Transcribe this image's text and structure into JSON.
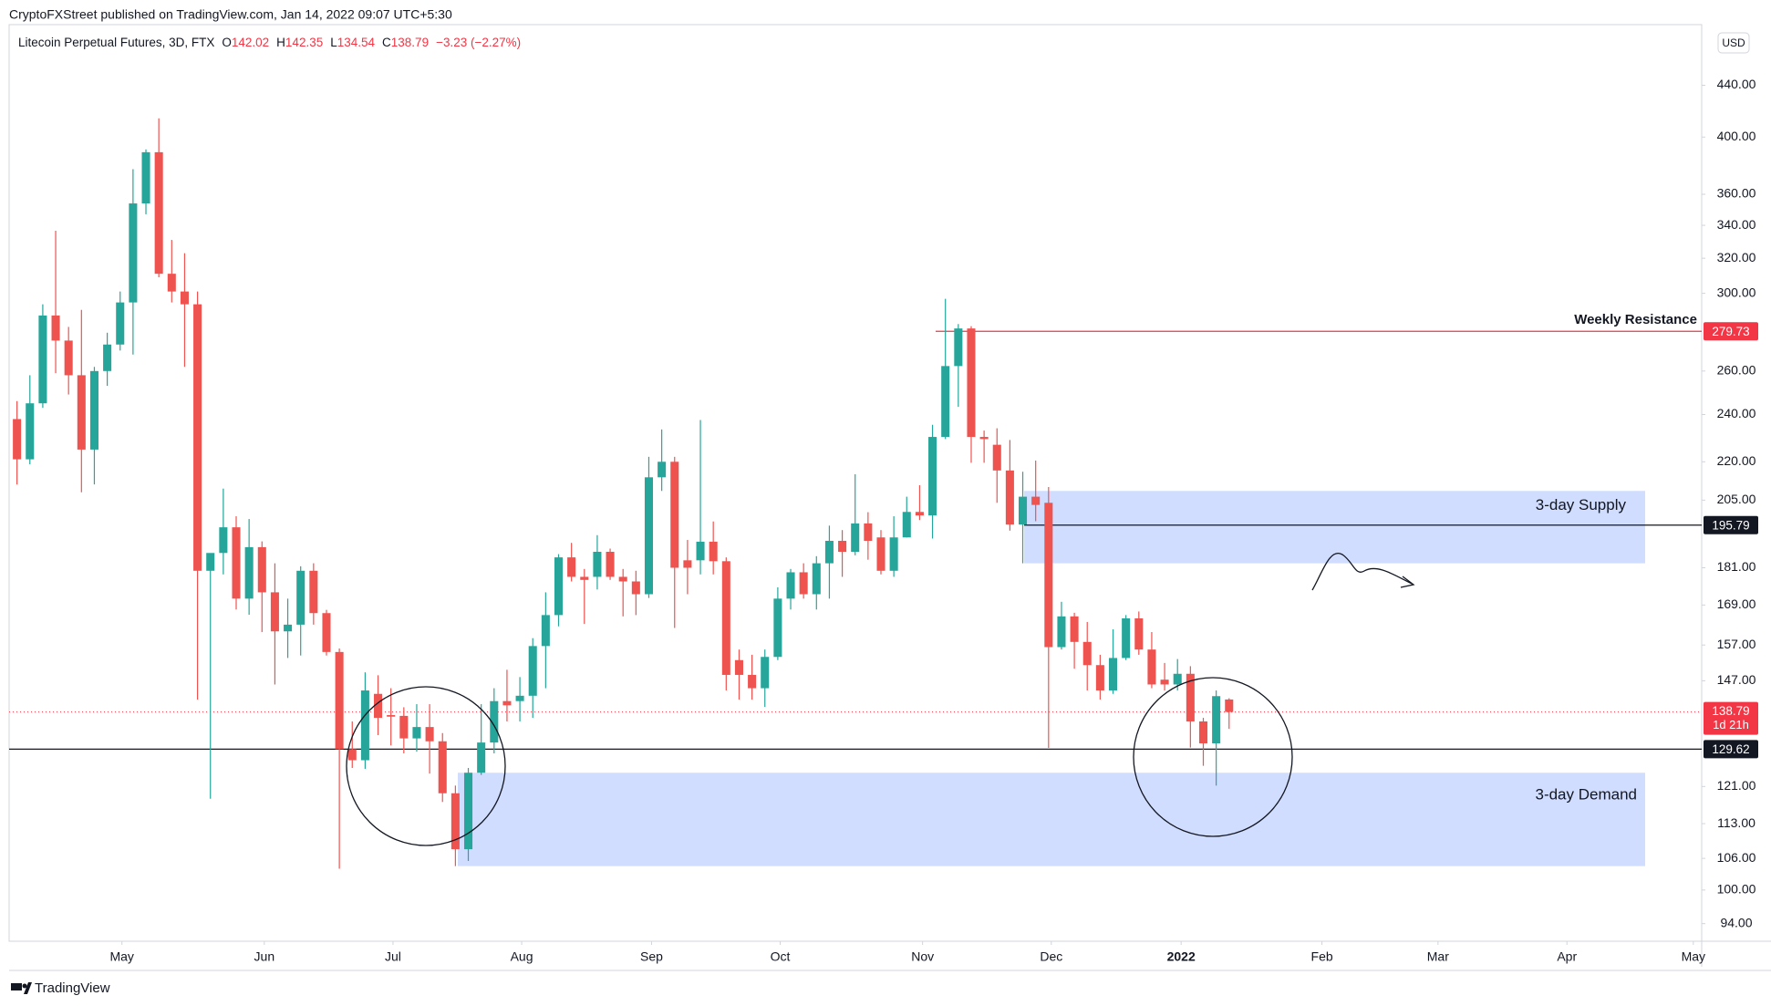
{
  "header": "CryptoFXStreet published on TradingView.com, Jan 14, 2022 09:07 UTC+5:30",
  "footer": "TradingView",
  "chart_data": {
    "type": "candlestick",
    "legend": {
      "symbol": "Litecoin Perpetual Futures, 3D, FTX",
      "ohlc": [
        {
          "label": "O",
          "value": 142.02
        },
        {
          "label": "H",
          "value": 142.35
        },
        {
          "label": "L",
          "value": 134.54
        },
        {
          "label": "C",
          "value": 138.79
        }
      ],
      "change": "−3.23 (−2.27%)"
    },
    "currency": "USD",
    "up_color": "#26a69a",
    "down_color": "#ef5350",
    "log_scale": true,
    "grid": false,
    "open": [
      238,
      221,
      245,
      288,
      275,
      258,
      225,
      260,
      273,
      295,
      354,
      389,
      311,
      301,
      294,
      180,
      186,
      195,
      171,
      188,
      173,
      161,
      163,
      180,
      166.5,
      155,
      129.6,
      127,
      143.5,
      138,
      137.8,
      132.2,
      135,
      131.5,
      119.5,
      107.8,
      124.1,
      131.2,
      141.6,
      141.6,
      143,
      156.7,
      165.9,
      184.5,
      178,
      178,
      186.4,
      178,
      176.5,
      172.4,
      213.8,
      220,
      183.5,
      183.5,
      189.9,
      183.2,
      152.7,
      148.6,
      145,
      153.6,
      171,
      179.5,
      172.4,
      182.5,
      190.2,
      186.4,
      196.4,
      191.4,
      180,
      191.4,
      200.6,
      199.3,
      230.3,
      262.4,
      281.2,
      230.3,
      227,
      216.5,
      196,
      206.3,
      204,
      156.4,
      165.5,
      157.9,
      151.3,
      144.4,
      153.3,
      164.9,
      155.7,
      147.3,
      146,
      148.9,
      136.4,
      131,
      142.02
    ],
    "high": [
      246,
      258,
      294,
      336.6,
      282,
      291,
      262,
      279,
      301,
      377,
      391,
      414,
      331,
      323,
      301,
      185.6,
      209.4,
      199,
      198,
      190,
      182.5,
      171,
      181.5,
      182.5,
      167.5,
      156,
      136.4,
      149.3,
      148.5,
      145,
      140,
      140.8,
      140.8,
      133.5,
      121.2,
      125.2,
      140.8,
      145,
      150,
      148,
      159,
      173,
      185.6,
      189.5,
      180.6,
      192.2,
      187.5,
      180.6,
      180,
      222,
      233.5,
      222,
      190.5,
      237.6,
      197.1,
      184.5,
      155.7,
      154.2,
      155.7,
      174.6,
      180.6,
      182.5,
      184.9,
      195.6,
      194,
      215,
      200.5,
      194,
      199,
      206.3,
      210.7,
      235.5,
      297,
      283.5,
      282.4,
      233,
      234,
      229,
      216,
      220.5,
      210,
      170,
      166.6,
      163.8,
      154.2,
      161.6,
      165.9,
      167,
      160.8,
      151.9,
      153,
      151,
      137.3,
      144.4,
      142.35
    ],
    "low": [
      211,
      219,
      243,
      259,
      249,
      208,
      211,
      253,
      270,
      268,
      347,
      309,
      295,
      262,
      142,
      118.3,
      178.8,
      167.6,
      166,
      160.8,
      146,
      153.3,
      154,
      163,
      154,
      104,
      125.2,
      125,
      133,
      130.5,
      128.6,
      129,
      123.9,
      117.6,
      104.5,
      105.5,
      123.6,
      128.6,
      136.4,
      136.4,
      137.3,
      145,
      162.5,
      176.5,
      163.2,
      173.9,
      177,
      165.5,
      165.9,
      171.2,
      208.5,
      162,
      172.4,
      178.8,
      178.8,
      144.4,
      142,
      142,
      140.1,
      152.7,
      167.6,
      171,
      167.6,
      171,
      178,
      185.2,
      183.7,
      178.8,
      178,
      191.4,
      197.6,
      191,
      229.4,
      243.4,
      219.6,
      219.6,
      204,
      193.8,
      182.5,
      197.2,
      129.9,
      155.7,
      150.3,
      144.4,
      142,
      143.5,
      152.7,
      154.2,
      145,
      144.4,
      144.4,
      130,
      125.7,
      121.2,
      134.54
    ],
    "close": [
      221,
      245,
      288,
      275,
      258,
      225,
      260,
      273,
      295,
      354,
      389,
      311,
      301,
      294,
      180,
      186,
      195,
      171,
      188,
      173,
      161,
      163,
      180,
      166.5,
      155,
      129.6,
      127,
      144.4,
      137.3,
      137.6,
      132.2,
      135,
      131.5,
      119.5,
      107.8,
      124.1,
      131.2,
      141.6,
      140.5,
      143,
      156.7,
      165.9,
      184.5,
      178,
      177,
      186.4,
      178,
      176.5,
      172.4,
      213.8,
      220,
      181,
      181,
      189.9,
      183.2,
      148.6,
      148.6,
      145,
      153.6,
      171,
      179.5,
      172.4,
      182.5,
      190.2,
      186.4,
      196.4,
      190.2,
      180,
      191.4,
      200.6,
      199.3,
      230.3,
      262.4,
      281.2,
      230.3,
      229.4,
      216.5,
      196,
      206.3,
      203.2,
      156.4,
      165.5,
      157.9,
      151.3,
      144.4,
      153.3,
      164.9,
      155.7,
      146,
      146,
      148.9,
      136.4,
      131,
      142.9,
      138.79
    ],
    "xlim": [
      -0.61,
      130.65
    ],
    "xticks": [
      {
        "value": 8.14,
        "label": "May"
      },
      {
        "value": 19.18,
        "label": "Jun"
      },
      {
        "value": 29.16,
        "label": "Jul"
      },
      {
        "value": 39.14,
        "label": "Aug"
      },
      {
        "value": 49.21,
        "label": "Sep"
      },
      {
        "value": 59.19,
        "label": "Oct"
      },
      {
        "value": 70.23,
        "label": "Nov"
      },
      {
        "value": 80.21,
        "label": "Dec"
      },
      {
        "value": 90.28,
        "label": "2022",
        "bold": true
      },
      {
        "value": 101.2,
        "label": "Feb"
      },
      {
        "value": 110.2,
        "label": "Mar"
      },
      {
        "value": 120.2,
        "label": "Apr"
      },
      {
        "value": 130.0,
        "label": "May"
      }
    ],
    "ylim": [
      91,
      492
    ],
    "yticks": [
      {
        "value": 440,
        "label": "440.00"
      },
      {
        "value": 400,
        "label": "400.00"
      },
      {
        "value": 360,
        "label": "360.00"
      },
      {
        "value": 340,
        "label": "340.00"
      },
      {
        "value": 320,
        "label": "320.00"
      },
      {
        "value": 300,
        "label": "300.00"
      },
      {
        "value": 260,
        "label": "260.00"
      },
      {
        "value": 240,
        "label": "240.00"
      },
      {
        "value": 220,
        "label": "220.00"
      },
      {
        "value": 205,
        "label": "205.00"
      },
      {
        "value": 181,
        "label": "181.00"
      },
      {
        "value": 169,
        "label": "169.00"
      },
      {
        "value": 157,
        "label": "157.00"
      },
      {
        "value": 147,
        "label": "147.00"
      },
      {
        "value": 121,
        "label": "121.00"
      },
      {
        "value": 113,
        "label": "113.00"
      },
      {
        "value": 106,
        "label": "106.00"
      },
      {
        "value": 100,
        "label": "100.00"
      },
      {
        "value": 94,
        "label": "94.00"
      }
    ],
    "levels": [
      {
        "name": "Weekly Resistance",
        "value": 279.73,
        "color": "#f23645"
      },
      {
        "value": 195.79,
        "color": "#131722"
      },
      {
        "value": 129.62,
        "color": "#131722"
      }
    ],
    "last_price": {
      "value": 138.79,
      "countdown": "1d 21h",
      "color": "#f23645"
    },
    "zone_color": "#2962ff",
    "zones": [
      {
        "name": "3-day Supply",
        "low": 182.5,
        "high": 208.5
      },
      {
        "name": "3-day Demand",
        "low": 104.5,
        "high": 124.1
      }
    ]
  }
}
